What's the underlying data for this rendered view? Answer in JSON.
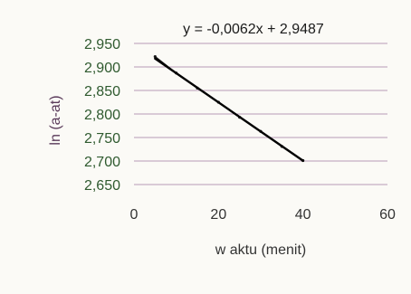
{
  "chart_data": {
    "type": "scatter",
    "title": "",
    "annotation": "y = -0,0062x + 2,9487",
    "xlabel": "w aktu (menit)",
    "ylabel": "ln (a-at)",
    "xlim": [
      0,
      60
    ],
    "ylim": [
      2.65,
      2.95
    ],
    "x_ticks": [
      0,
      20,
      40,
      60
    ],
    "x_tick_labels": [
      "0",
      "20",
      "40",
      "60"
    ],
    "y_ticks": [
      2.65,
      2.7,
      2.75,
      2.8,
      2.85,
      2.9,
      2.95
    ],
    "y_tick_labels": [
      "2,650",
      "2,700",
      "2,750",
      "2,800",
      "2,850",
      "2,900",
      "2,950"
    ],
    "grid": true,
    "legend": "none",
    "series": [
      {
        "x": [
          5,
          10,
          15,
          20,
          25,
          30,
          35,
          40
        ],
        "y": [
          2.922,
          2.887,
          2.855,
          2.825,
          2.793,
          2.763,
          2.731,
          2.701
        ]
      }
    ],
    "trendline": {
      "slope": -0.0062,
      "intercept": 2.9487,
      "x_range": [
        5,
        40
      ]
    },
    "colors": {
      "data_line": "#1a1a1a",
      "trendline": "#000000",
      "grid": "#b79bb7",
      "y_tick_text": "#2f5a2f",
      "x_tick_text": "#333333",
      "label_text": "#333333",
      "ylabel_text": "#5a3a5a"
    }
  }
}
